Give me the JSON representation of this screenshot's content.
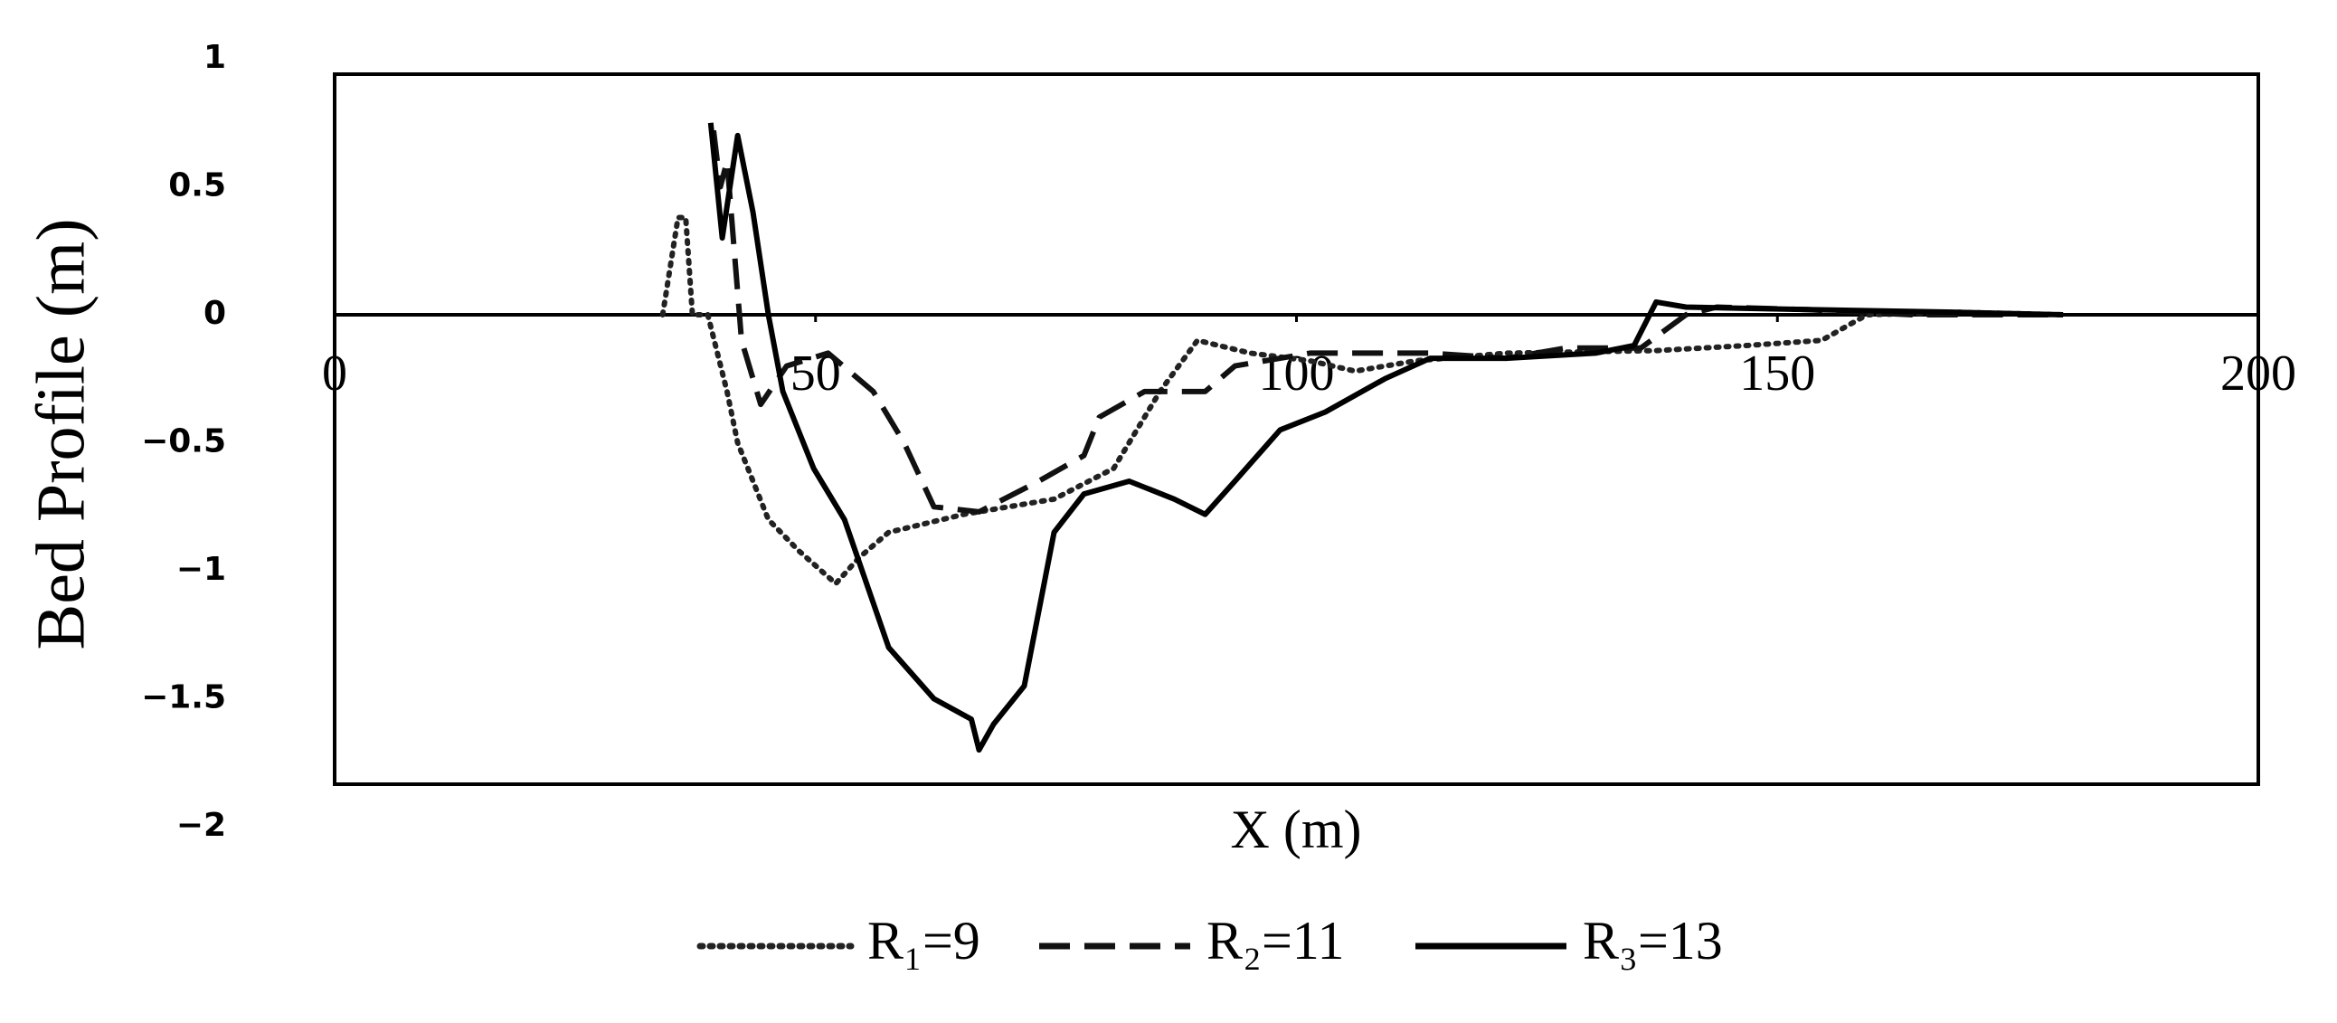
{
  "chart_data": {
    "type": "line",
    "y_label": "Bed Profile (m)",
    "x_label": "X (m)",
    "xlim": [
      0,
      200
    ],
    "xticks": [
      0,
      50,
      100,
      150,
      200
    ],
    "ylim": [
      -2,
      1
    ],
    "yticks": [
      {
        "value": -2,
        "label": "−2"
      },
      {
        "value": -1.5,
        "label": "−1.5"
      },
      {
        "value": -1,
        "label": "−1"
      },
      {
        "value": -0.5,
        "label": "−0.5"
      },
      0,
      0.5,
      1
    ],
    "grid": false,
    "legend": "bottom",
    "series": [
      {
        "name": "R₁=9",
        "color": "#222222",
        "style": "dotted",
        "x": [
          34.1,
          35.7,
          36.5,
          37.2,
          38.8,
          40.8,
          41.9,
          45.1,
          48.2,
          52.1,
          54.5,
          57.6,
          65.4,
          74.8,
          81.0,
          85.8,
          89.7,
          95.2,
          101.4,
          106.1,
          112.4,
          121.8,
          137.4,
          146.8,
          154.6,
          159.3,
          168.7,
          179.7
        ],
        "values": [
          0,
          0.38,
          0.38,
          0,
          0,
          -0.3,
          -0.5,
          -0.8,
          -0.92,
          -1.05,
          -0.95,
          -0.85,
          -0.78,
          -0.72,
          -0.6,
          -0.3,
          -0.1,
          -0.15,
          -0.18,
          -0.22,
          -0.18,
          -0.15,
          -0.14,
          -0.12,
          -0.1,
          0,
          0.01,
          0
        ]
      },
      {
        "name": "R₂=11",
        "color": "#111111",
        "style": "dashed",
        "x": [
          39.4,
          40.1,
          40.8,
          42.3,
          44.3,
          47.0,
          51.3,
          56.0,
          59.2,
          62.3,
          67.0,
          73.2,
          77.9,
          79.5,
          84.2,
          90.5,
          93.6,
          101.4,
          113.9,
          121.8,
          128.0,
          135.8,
          140.5,
          143.7,
          153.1,
          164.0,
          179.7
        ],
        "values": [
          0.72,
          0.5,
          0.6,
          -0.1,
          -0.35,
          -0.2,
          -0.15,
          -0.3,
          -0.5,
          -0.75,
          -0.77,
          -0.65,
          -0.55,
          -0.4,
          -0.3,
          -0.3,
          -0.2,
          -0.15,
          -0.15,
          -0.17,
          -0.13,
          -0.13,
          0,
          0.03,
          0.02,
          0,
          0
        ]
      },
      {
        "name": "R₃=13",
        "color": "#000000",
        "style": "solid",
        "x": [
          39.1,
          40.3,
          41.9,
          43.5,
          45.1,
          46.6,
          49.8,
          53.0,
          57.6,
          62.3,
          66.2,
          67.0,
          68.5,
          71.7,
          74.8,
          77.9,
          82.6,
          87.3,
          90.5,
          93.6,
          98.3,
          103.0,
          109.2,
          113.9,
          121.8,
          131.1,
          135.1,
          137.4,
          140.5,
          153.1,
          168.7,
          179.7
        ],
        "values": [
          0.75,
          0.3,
          0.7,
          0.4,
          0,
          -0.3,
          -0.6,
          -0.8,
          -1.3,
          -1.5,
          -1.58,
          -1.7,
          -1.6,
          -1.45,
          -0.85,
          -0.7,
          -0.65,
          -0.72,
          -0.78,
          -0.65,
          -0.45,
          -0.38,
          -0.25,
          -0.17,
          -0.17,
          -0.15,
          -0.12,
          0.05,
          0.03,
          0.02,
          0.01,
          0
        ]
      }
    ]
  }
}
